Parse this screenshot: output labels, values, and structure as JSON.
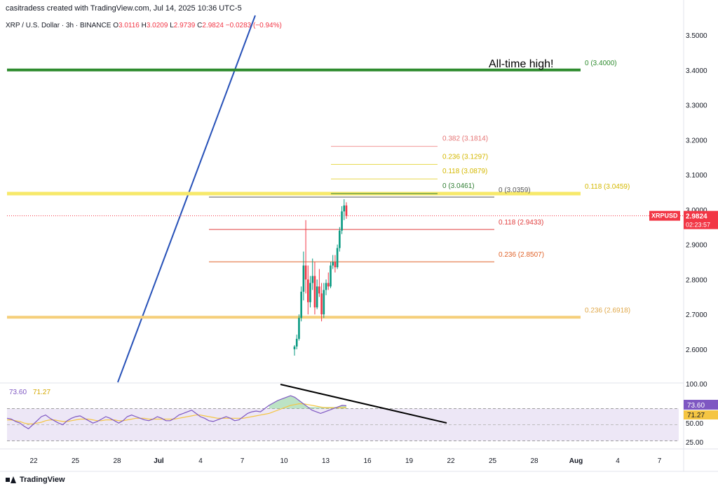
{
  "header": {
    "credit": "casitradess created with TradingView.com, Jul 14, 2025 10:36 UTC-5"
  },
  "symbol": {
    "name": "XRP / U.S. Dollar · 3h · BINANCE",
    "o_label": "O",
    "o": "3.0116",
    "h_label": "H",
    "h": "3.0209",
    "l_label": "L",
    "l": "2.9739",
    "c_label": "C",
    "c": "2.9824",
    "change": "−0.0283 (−0.94%)"
  },
  "footer": {
    "logo_text": "TradingView"
  },
  "colors": {
    "up": "#089981",
    "down": "#f23645",
    "ath_line": "#2e8b2e",
    "yellow_line": "#f7e96a",
    "orange_line": "#f5cf7a",
    "trend_line": "#2751b8",
    "fib_red": "#e03c3c",
    "fib_orange": "#e0632a",
    "rsi_line": "#7e57c2",
    "rsi_ma": "#f5c542",
    "rsi_band": "#ede7f6"
  },
  "chart_data": {
    "type": "candlestick",
    "price_axis": {
      "ticks": [
        "3.5000",
        "3.4000",
        "3.3000",
        "3.2000",
        "3.1000",
        "3.0000",
        "2.9000",
        "2.8000",
        "2.7000",
        "2.6000"
      ],
      "range": [
        2.56,
        3.55
      ]
    },
    "x_axis": {
      "ticks": [
        "22",
        "25",
        "28",
        "Jul",
        "4",
        "7",
        "10",
        "13",
        "16",
        "19",
        "22",
        "25",
        "28",
        "Aug",
        "4",
        "7"
      ]
    },
    "current_price": {
      "symbol": "XRPUSD",
      "price": "2.9824",
      "countdown": "02:23:57",
      "value": 2.9824
    },
    "annotations": {
      "ath_text": "All-time high!"
    },
    "levels": [
      {
        "label": "0 (3.4000)",
        "value": 3.4
      },
      {
        "label": "0.118 (3.0459)",
        "value": 3.0459
      },
      {
        "label": "0.236 (2.6918)",
        "value": 2.6918
      }
    ],
    "fib_retracement": [
      {
        "label": "0 (3.0359)",
        "value": 3.0359
      },
      {
        "label": "0.118 (2.9433)",
        "value": 2.9433
      },
      {
        "label": "0.236 (2.8507)",
        "value": 2.8507
      }
    ],
    "fib_extension": [
      {
        "label": "0 (3.0461)",
        "value": 3.0461
      },
      {
        "label": "0.118 (3.0879)",
        "value": 3.0879
      },
      {
        "label": "0.236 (3.1297)",
        "value": 3.1297
      },
      {
        "label": "0.382 (3.1814)",
        "value": 3.1814
      }
    ],
    "candles": [
      {
        "o": 2.6,
        "h": 2.612,
        "l": 2.582,
        "c": 2.608
      },
      {
        "o": 2.608,
        "h": 2.642,
        "l": 2.6,
        "c": 2.63
      },
      {
        "o": 2.63,
        "h": 2.7,
        "l": 2.625,
        "c": 2.69
      },
      {
        "o": 2.69,
        "h": 2.78,
        "l": 2.68,
        "c": 2.765
      },
      {
        "o": 2.765,
        "h": 2.88,
        "l": 2.74,
        "c": 2.84
      },
      {
        "o": 2.84,
        "h": 2.97,
        "l": 2.76,
        "c": 2.8
      },
      {
        "o": 2.8,
        "h": 2.84,
        "l": 2.7,
        "c": 2.735
      },
      {
        "o": 2.735,
        "h": 2.81,
        "l": 2.72,
        "c": 2.79
      },
      {
        "o": 2.79,
        "h": 2.86,
        "l": 2.77,
        "c": 2.81
      },
      {
        "o": 2.81,
        "h": 2.85,
        "l": 2.7,
        "c": 2.72
      },
      {
        "o": 2.72,
        "h": 2.8,
        "l": 2.715,
        "c": 2.78
      },
      {
        "o": 2.78,
        "h": 2.83,
        "l": 2.75,
        "c": 2.76
      },
      {
        "o": 2.76,
        "h": 2.79,
        "l": 2.68,
        "c": 2.7
      },
      {
        "o": 2.7,
        "h": 2.79,
        "l": 2.69,
        "c": 2.77
      },
      {
        "o": 2.77,
        "h": 2.8,
        "l": 2.755,
        "c": 2.79
      },
      {
        "o": 2.79,
        "h": 2.82,
        "l": 2.77,
        "c": 2.78
      },
      {
        "o": 2.78,
        "h": 2.85,
        "l": 2.775,
        "c": 2.84
      },
      {
        "o": 2.84,
        "h": 2.87,
        "l": 2.83,
        "c": 2.85
      },
      {
        "o": 2.85,
        "h": 2.87,
        "l": 2.82,
        "c": 2.835
      },
      {
        "o": 2.835,
        "h": 2.9,
        "l": 2.83,
        "c": 2.89
      },
      {
        "o": 2.89,
        "h": 2.95,
        "l": 2.88,
        "c": 2.94
      },
      {
        "o": 2.94,
        "h": 3.01,
        "l": 2.93,
        "c": 2.995
      },
      {
        "o": 2.995,
        "h": 3.03,
        "l": 2.97,
        "c": 3.012
      },
      {
        "o": 3.012,
        "h": 3.021,
        "l": 2.974,
        "c": 2.982
      }
    ],
    "rsi": {
      "value_label": "73.60",
      "ma_label": "71.27",
      "axis_ticks": [
        "100.00",
        "50.00",
        "25.00"
      ],
      "band": [
        30,
        70
      ],
      "range": [
        20,
        100
      ],
      "values": [
        58,
        57,
        54,
        52,
        48,
        45,
        50,
        55,
        60,
        62,
        58,
        55,
        52,
        50,
        55,
        58,
        60,
        61,
        58,
        55,
        52,
        54,
        57,
        60,
        58,
        55,
        52,
        55,
        60,
        62,
        60,
        58,
        56,
        55,
        57,
        60,
        58,
        55,
        55,
        58,
        62,
        64,
        66,
        68,
        64,
        60,
        58,
        55,
        54,
        56,
        58,
        60,
        58,
        55,
        56,
        60,
        64,
        66,
        67,
        66,
        70,
        74,
        77,
        80,
        82,
        84,
        86,
        84,
        80,
        76,
        72,
        68,
        66,
        64,
        66,
        68,
        70,
        72,
        74,
        73.6
      ],
      "ma": [
        56,
        56,
        55,
        54,
        52,
        51,
        51,
        52,
        53,
        55,
        56,
        56,
        55,
        54,
        54,
        55,
        56,
        57,
        57,
        57,
        56,
        55,
        55,
        56,
        56,
        56,
        55,
        55,
        56,
        57,
        58,
        58,
        58,
        57,
        57,
        57,
        57,
        57,
        57,
        57,
        58,
        59,
        60,
        61,
        62,
        62,
        61,
        60,
        59,
        58,
        58,
        58,
        58,
        58,
        58,
        58,
        59,
        60,
        61,
        62,
        63,
        64,
        66,
        68,
        70,
        72,
        74,
        75,
        76,
        76,
        75,
        74,
        73,
        72,
        71,
        71,
        71,
        71,
        71,
        71.27
      ]
    }
  }
}
